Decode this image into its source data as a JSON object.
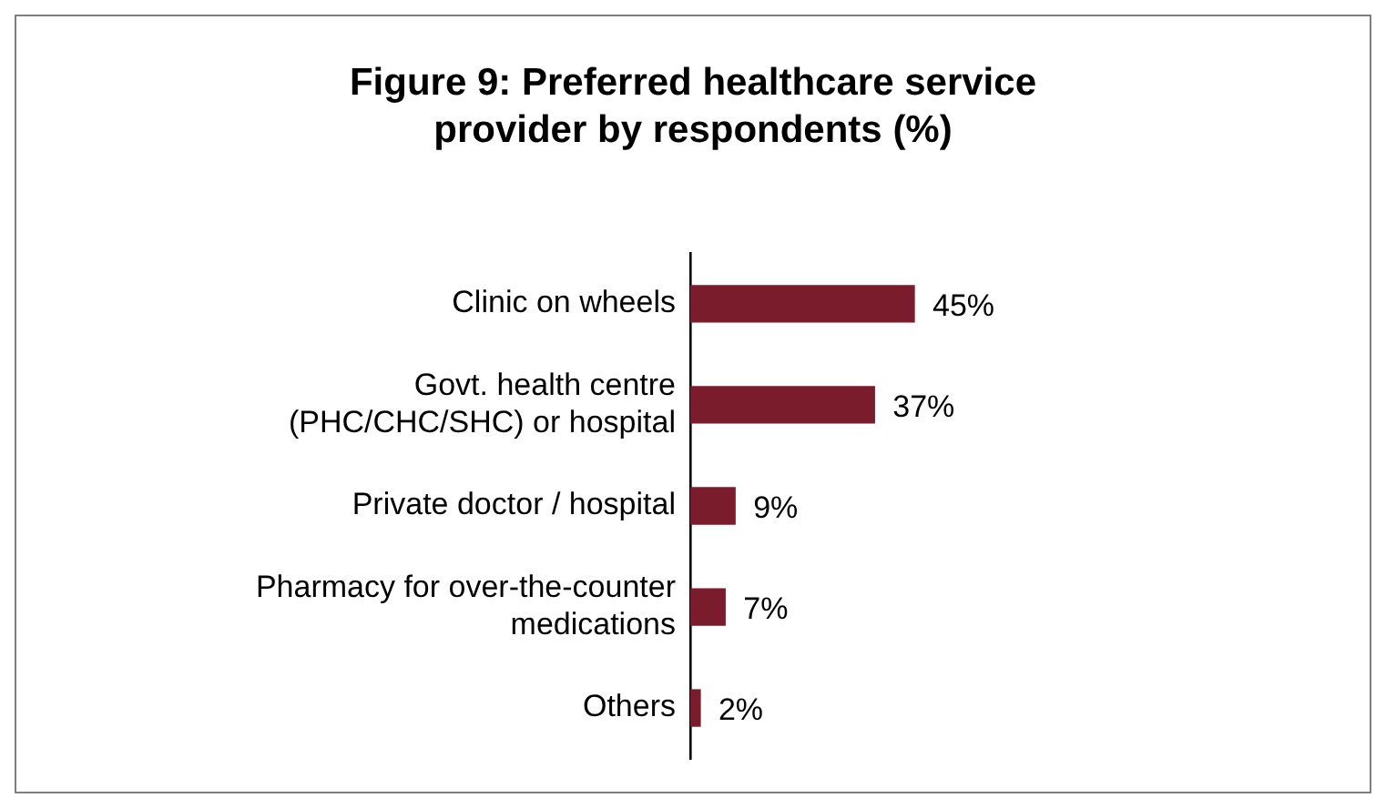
{
  "chart_data": {
    "type": "bar",
    "orientation": "horizontal",
    "title": "Figure 9: Preferred healthcare service provider by respondents (%)",
    "categories": [
      "Clinic on wheels",
      "Govt. health centre (PHC/CHC/SHC) or hospital",
      "Private doctor / hospital",
      "Pharmacy for over-the-counter medications",
      "Others"
    ],
    "values": [
      45,
      37,
      9,
      7,
      2
    ],
    "value_labels": [
      "45%",
      "37%",
      "9%",
      "7%",
      "2%"
    ],
    "color": "#7b1c2c"
  }
}
